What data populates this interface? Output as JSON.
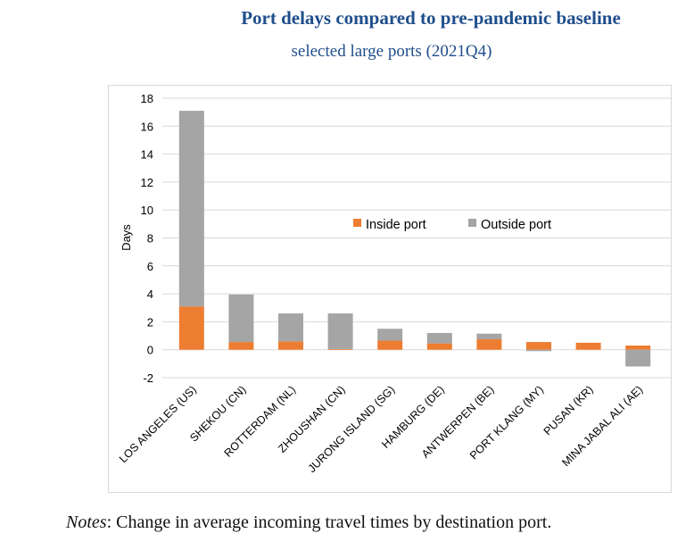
{
  "chart_data": {
    "type": "bar",
    "stacked": true,
    "title": "Port delays compared to pre-pandemic baseline",
    "subtitle": "selected large ports (2021Q4)",
    "xlabel": "",
    "ylabel": "Days",
    "ylim": [
      -2,
      18
    ],
    "yticks": [
      -2,
      0,
      2,
      4,
      6,
      8,
      10,
      12,
      14,
      16,
      18
    ],
    "grid": true,
    "legend_position": "center-top-right",
    "categories": [
      "LOS ANGELES (US)",
      "SHEKOU (CN)",
      "ROTTERDAM (NL)",
      "ZHOUSHAN (CN)",
      "JURONG ISLAND (SG)",
      "HAMBURG (DE)",
      "ANTWERPEN (BE)",
      "PORT KLANG (MY)",
      "PUSAN (KR)",
      "MINA JABAL ALI (AE)"
    ],
    "series": [
      {
        "name": "Inside port",
        "color": "#ed7d31",
        "values": [
          3.1,
          0.55,
          0.6,
          0.05,
          0.65,
          0.45,
          0.75,
          0.55,
          0.5,
          0.3
        ]
      },
      {
        "name": "Outside port",
        "color": "#a5a5a5",
        "values": [
          14.0,
          3.4,
          2.0,
          2.55,
          0.85,
          0.75,
          0.4,
          -0.1,
          0.0,
          -1.2
        ]
      }
    ]
  },
  "notes": {
    "label": "Notes",
    "text": ": Change in average incoming travel times by destination port."
  }
}
